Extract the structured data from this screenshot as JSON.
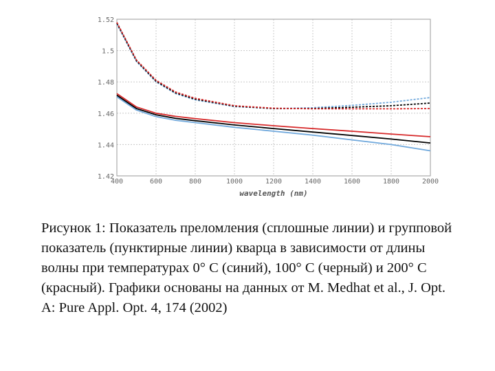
{
  "chart_data": {
    "type": "line",
    "xlabel": "wavelength (nm)",
    "ylabel": "",
    "xlim": [
      400,
      2000
    ],
    "ylim": [
      1.42,
      1.52
    ],
    "xticks": [
      "400",
      "600",
      "800",
      "1000",
      "1200",
      "1400",
      "1600",
      "1800",
      "2000"
    ],
    "yticks": [
      "1.52",
      "1.5",
      "1.48",
      "1.46",
      "1.44",
      "1.42"
    ],
    "grid": true,
    "series": [
      {
        "group": "index",
        "style": "solid",
        "color": "#6fa8dc",
        "x": [
          400,
          500,
          600,
          700,
          800,
          1000,
          1200,
          1400,
          1600,
          1800,
          2000
        ],
        "y": [
          1.4705,
          1.462,
          1.4578,
          1.4555,
          1.454,
          1.451,
          1.4485,
          1.446,
          1.443,
          1.44,
          1.436
        ]
      },
      {
        "group": "index",
        "style": "solid",
        "color": "#000000",
        "x": [
          400,
          500,
          600,
          700,
          800,
          1000,
          1200,
          1400,
          1600,
          1800,
          2000
        ],
        "y": [
          1.4715,
          1.463,
          1.459,
          1.4567,
          1.4552,
          1.4525,
          1.4502,
          1.448,
          1.4458,
          1.4435,
          1.441
        ]
      },
      {
        "group": "index",
        "style": "solid",
        "color": "#d62728",
        "x": [
          400,
          500,
          600,
          700,
          800,
          1000,
          1200,
          1400,
          1600,
          1800,
          2000
        ],
        "y": [
          1.4725,
          1.464,
          1.46,
          1.458,
          1.4566,
          1.454,
          1.452,
          1.4502,
          1.4485,
          1.4467,
          1.445
        ]
      },
      {
        "group": "group index",
        "style": "dashed",
        "color": "#6fa8dc",
        "x": [
          400,
          500,
          600,
          700,
          800,
          1000,
          1200,
          1400,
          1600,
          1800,
          2000
        ],
        "y": [
          1.517,
          1.493,
          1.48,
          1.4725,
          1.4685,
          1.4642,
          1.463,
          1.4635,
          1.465,
          1.467,
          1.47
        ]
      },
      {
        "group": "group index",
        "style": "dashed",
        "color": "#000000",
        "x": [
          400,
          500,
          600,
          700,
          800,
          1000,
          1200,
          1400,
          1600,
          1800,
          2000
        ],
        "y": [
          1.5175,
          1.4935,
          1.4805,
          1.473,
          1.469,
          1.4645,
          1.463,
          1.463,
          1.4638,
          1.4648,
          1.4665
        ]
      },
      {
        "group": "group index",
        "style": "dashed",
        "color": "#d62728",
        "x": [
          400,
          500,
          600,
          700,
          800,
          1000,
          1200,
          1400,
          1600,
          1800,
          2000
        ],
        "y": [
          1.518,
          1.494,
          1.481,
          1.4735,
          1.4695,
          1.4648,
          1.4632,
          1.4628,
          1.4628,
          1.4628,
          1.463
        ]
      }
    ]
  },
  "caption": "Рисунок 1: Показатель преломления (сплошные линии) и групповой показатель (пунктирные линии) кварца в зависимости от длины волны при температурах 0° C (синий), 100° C (черный) и 200° C (красный). Графики основаны на данных от M. Medhat et al., J. Opt. A: Pure Appl. Opt. 4, 174 (2002)"
}
